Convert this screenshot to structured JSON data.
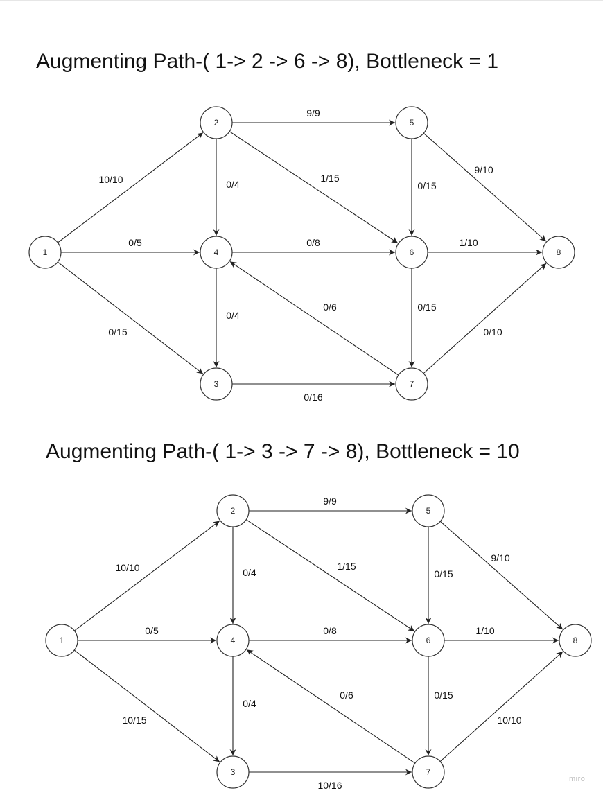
{
  "diagrams": [
    {
      "title": "Augmenting Path-( 1-> 2 -> 6 -> 8), Bottleneck = 1",
      "nodes": [
        {
          "id": "1",
          "label": "1"
        },
        {
          "id": "2",
          "label": "2"
        },
        {
          "id": "3",
          "label": "3"
        },
        {
          "id": "4",
          "label": "4"
        },
        {
          "id": "5",
          "label": "5"
        },
        {
          "id": "6",
          "label": "6"
        },
        {
          "id": "7",
          "label": "7"
        },
        {
          "id": "8",
          "label": "8"
        }
      ],
      "edges": [
        {
          "from": "1",
          "to": "2",
          "label": "10/10"
        },
        {
          "from": "1",
          "to": "4",
          "label": "0/5"
        },
        {
          "from": "1",
          "to": "3",
          "label": "0/15"
        },
        {
          "from": "2",
          "to": "5",
          "label": "9/9"
        },
        {
          "from": "2",
          "to": "4",
          "label": "0/4"
        },
        {
          "from": "2",
          "to": "6",
          "label": "1/15"
        },
        {
          "from": "5",
          "to": "6",
          "label": "0/15"
        },
        {
          "from": "5",
          "to": "8",
          "label": "9/10"
        },
        {
          "from": "4",
          "to": "6",
          "label": "0/8"
        },
        {
          "from": "6",
          "to": "8",
          "label": "1/10"
        },
        {
          "from": "4",
          "to": "3",
          "label": "0/4"
        },
        {
          "from": "7",
          "to": "4",
          "label": "0/6"
        },
        {
          "from": "6",
          "to": "7",
          "label": "0/15"
        },
        {
          "from": "7",
          "to": "8",
          "label": "0/10"
        },
        {
          "from": "3",
          "to": "7",
          "label": "0/16"
        }
      ]
    },
    {
      "title": "Augmenting Path-( 1-> 3 -> 7 -> 8), Bottleneck = 10",
      "nodes": [
        {
          "id": "1",
          "label": "1"
        },
        {
          "id": "2",
          "label": "2"
        },
        {
          "id": "3",
          "label": "3"
        },
        {
          "id": "4",
          "label": "4"
        },
        {
          "id": "5",
          "label": "5"
        },
        {
          "id": "6",
          "label": "6"
        },
        {
          "id": "7",
          "label": "7"
        },
        {
          "id": "8",
          "label": "8"
        }
      ],
      "edges": [
        {
          "from": "1",
          "to": "2",
          "label": "10/10"
        },
        {
          "from": "1",
          "to": "4",
          "label": "0/5"
        },
        {
          "from": "1",
          "to": "3",
          "label": "10/15"
        },
        {
          "from": "2",
          "to": "5",
          "label": "9/9"
        },
        {
          "from": "2",
          "to": "4",
          "label": "0/4"
        },
        {
          "from": "2",
          "to": "6",
          "label": "1/15"
        },
        {
          "from": "5",
          "to": "6",
          "label": "0/15"
        },
        {
          "from": "5",
          "to": "8",
          "label": "9/10"
        },
        {
          "from": "4",
          "to": "6",
          "label": "0/8"
        },
        {
          "from": "6",
          "to": "8",
          "label": "1/10"
        },
        {
          "from": "4",
          "to": "3",
          "label": "0/4"
        },
        {
          "from": "7",
          "to": "4",
          "label": "0/6"
        },
        {
          "from": "6",
          "to": "7",
          "label": "0/15"
        },
        {
          "from": "7",
          "to": "8",
          "label": "10/10"
        },
        {
          "from": "3",
          "to": "7",
          "label": "10/16"
        }
      ]
    }
  ],
  "watermark": "miro"
}
